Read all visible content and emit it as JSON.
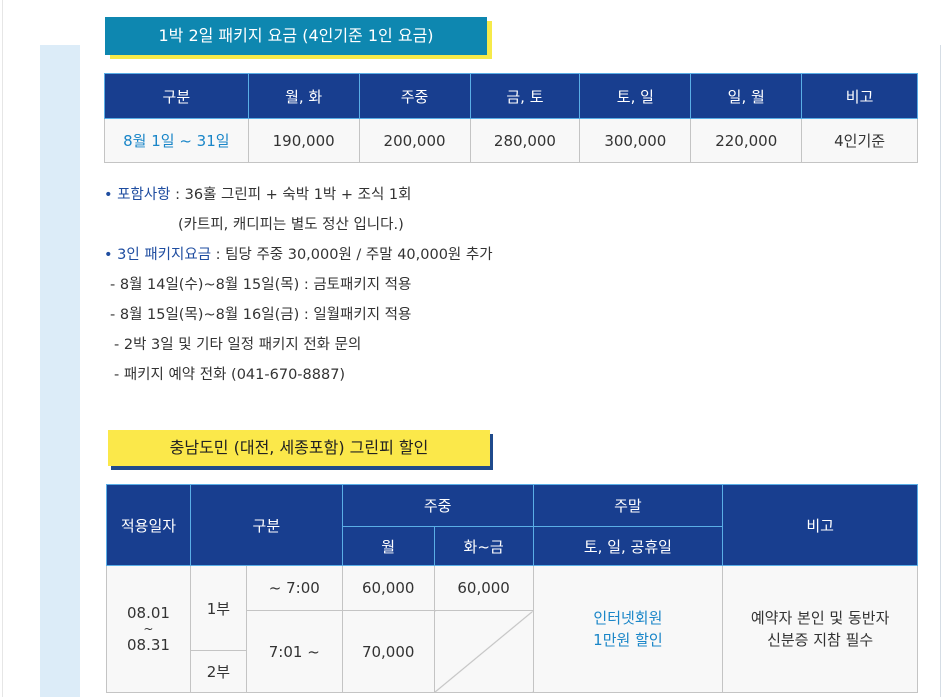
{
  "package": {
    "title": "1박 2일 패키지 요금 (4인기준 1인 요금)",
    "headers": [
      "구분",
      "월, 화",
      "주중",
      "금, 토",
      "토, 일",
      "일, 월",
      "비고"
    ],
    "row": [
      "8월 1일 ~ 31일",
      "190,000",
      "200,000",
      "280,000",
      "300,000",
      "220,000",
      "4인기준"
    ]
  },
  "notes": {
    "include_label": "• 포함사항",
    "include_text": " : 36홀 그린피 + 숙박 1박 + 조식 1회",
    "include_sub": "(카트피, 캐디피는 별도 정산 입니다.)",
    "three_label": "• 3인 패키지요금",
    "three_text": " : 팀당 주중 30,000원 / 주말 40,000원 추가",
    "lines": [
      "- 8월 14일(수)~8월 15일(목) : 금토패키지 적용",
      "- 8월 15일(목)~8월 16일(금) : 일월패키지 적용",
      "- 2박 3일 및 기타 일정 패키지 전화 문의",
      "- 패키지 예약 전화 (041-670-8887)"
    ]
  },
  "discount": {
    "title": "충남도민 (대전, 세종포함) 그린피 할인",
    "h_date": "적용일자",
    "h_type": "구분",
    "h_weekday": "주중",
    "h_weekend": "주말",
    "h_note": "비고",
    "h_mon": "월",
    "h_tuefri": "화~금",
    "h_weekend_sub": "토, 일, 공휴일",
    "date": [
      "08.01",
      "~",
      "08.31"
    ],
    "part1": "1부",
    "part2": "2부",
    "time1": "~ 7:00",
    "time2": "7:01 ~",
    "mon1": "60,000",
    "tuefri1": "60,000",
    "mon2": "70,000",
    "weekend": [
      "인터넷회원",
      "1만원 할인"
    ],
    "note": [
      "예약자 본인 및 동반자",
      "신분증 지참 필수"
    ]
  },
  "colors": {
    "header": "#183e8f",
    "teal": "#0e87b0",
    "yellow": "#fbe84a",
    "accent": "#1a86c8"
  }
}
